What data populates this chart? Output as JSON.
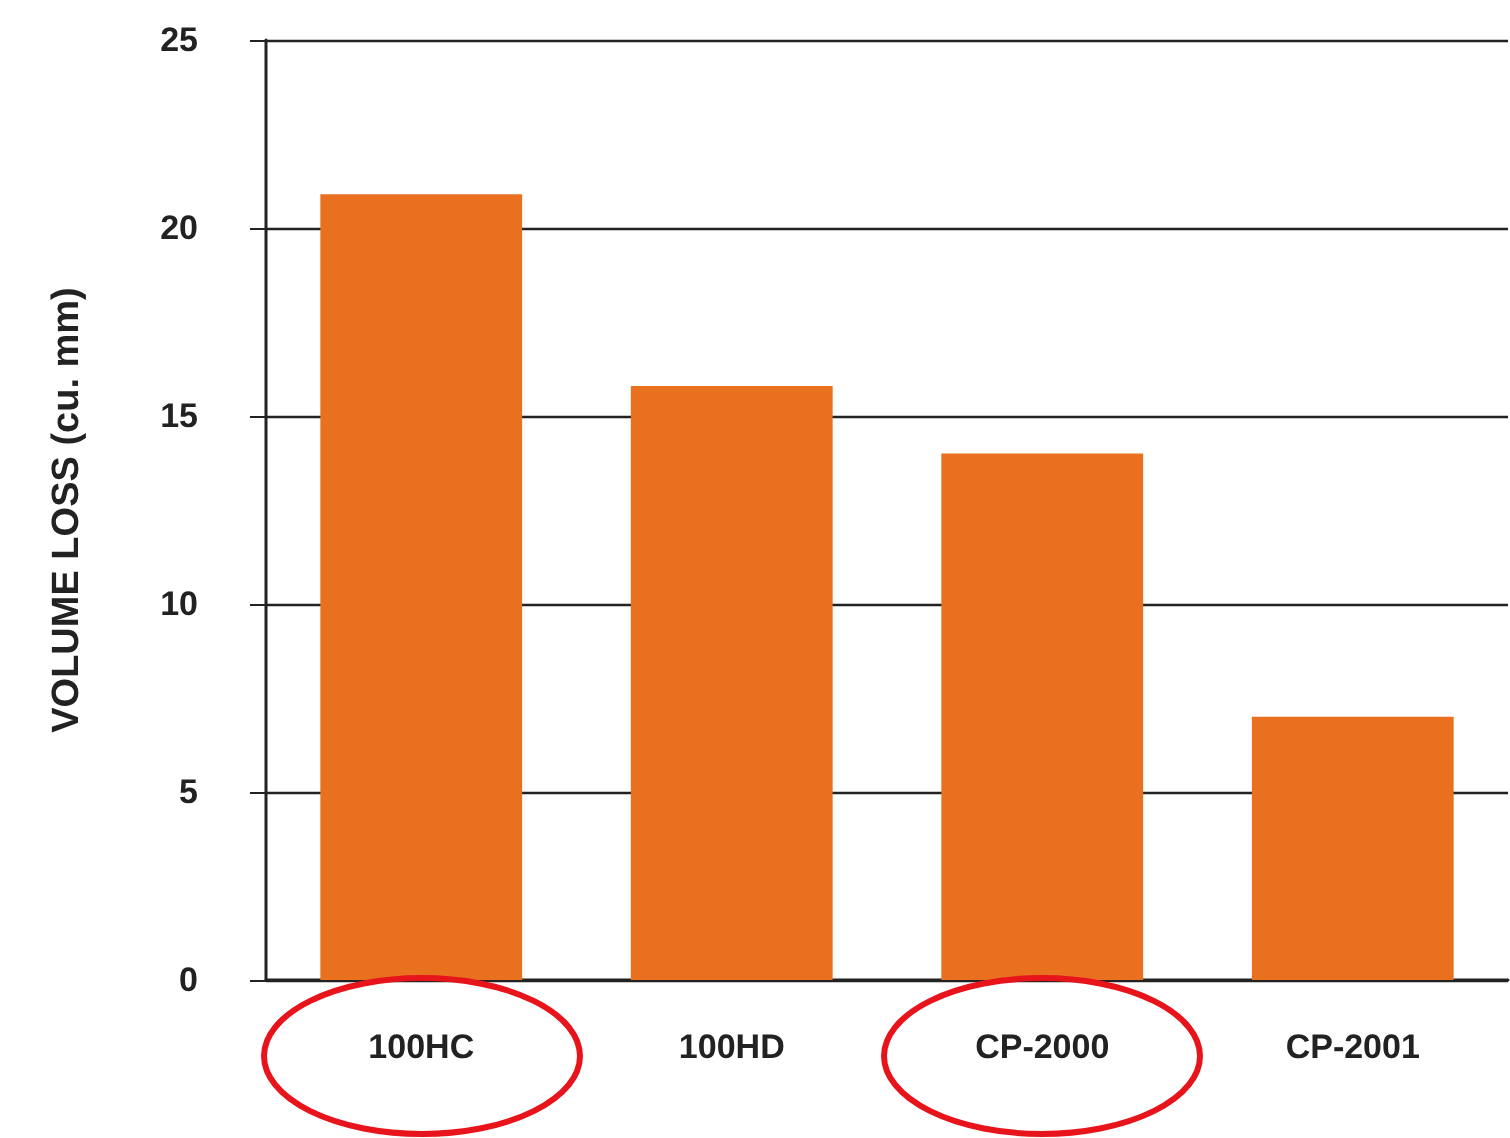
{
  "chart_data": {
    "type": "bar",
    "ylabel": "VOLUME LOSS (cu. mm)",
    "categories": [
      "100HC",
      "100HD",
      "CP-2000",
      "CP-2001"
    ],
    "values": [
      20.9,
      15.8,
      14,
      7
    ],
    "color": "#e8701e",
    "ylim": [
      0,
      25
    ],
    "yticks": [
      0,
      5,
      10,
      15,
      20,
      25
    ],
    "grid": "y"
  }
}
